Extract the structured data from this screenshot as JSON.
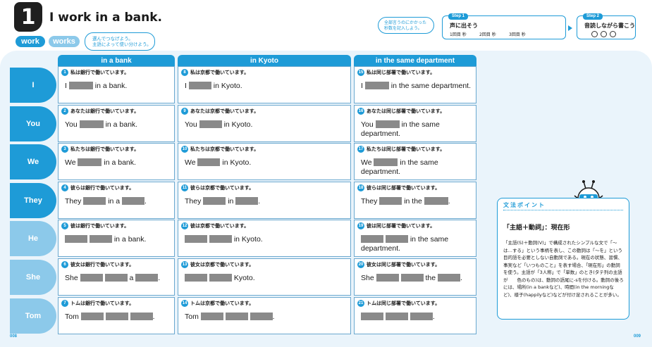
{
  "header": {
    "unit_number": "1",
    "title": "I work in a bank.",
    "pill_work": "work",
    "pill_works": "works",
    "instruction_line1": "選んでつなげよう。",
    "instruction_line2": "主語によって使い分けよう。"
  },
  "steps": {
    "hint_line1": "全部言うのにかかった",
    "hint_line2": "秒数を記入しよう。",
    "step1_tag": "Step 1",
    "step1_text": "声に出そう",
    "step1_r1": "1回目",
    "step1_r2": "2回目",
    "step1_r3": "3回目",
    "step1_unit": "秒",
    "step2_tag": "Step 2",
    "step2_text": "音読しながら書こう"
  },
  "columns": [
    "in a bank",
    "in Kyoto",
    "in the same department"
  ],
  "rows": [
    {
      "subject": "I",
      "style": "dark",
      "cells": [
        {
          "n": "1",
          "jp": "私は銀行で働いています。",
          "pre": "I",
          "b1": 34,
          "mid": "in a bank.",
          "b2": 0,
          "post": ""
        },
        {
          "n": "8",
          "jp": "私は京都で働いています。",
          "pre": "I",
          "b1": 32,
          "mid": "in Kyoto.",
          "b2": 0,
          "post": ""
        },
        {
          "n": "15",
          "jp": "私は同じ部署で働いています。",
          "pre": "I",
          "b1": 34,
          "mid": "in the same department.",
          "b2": 0,
          "post": ""
        }
      ]
    },
    {
      "subject": "You",
      "style": "dark",
      "cells": [
        {
          "n": "2",
          "jp": "あなたは銀行で働いています。",
          "pre": "You",
          "b1": 34,
          "mid": "in a bank.",
          "b2": 0,
          "post": ""
        },
        {
          "n": "9",
          "jp": "あなたは京都で働いています。",
          "pre": "You",
          "b1": 32,
          "mid": "in Kyoto.",
          "b2": 0,
          "post": ""
        },
        {
          "n": "16",
          "jp": "あなたは同じ部署で働いています。",
          "pre": "You",
          "b1": 34,
          "mid": "in the same department.",
          "b2": 0,
          "post": ""
        }
      ]
    },
    {
      "subject": "We",
      "style": "dark",
      "cells": [
        {
          "n": "3",
          "jp": "私たちは銀行で働いています。",
          "pre": "We",
          "b1": 34,
          "mid": "in a bank.",
          "b2": 0,
          "post": ""
        },
        {
          "n": "10",
          "jp": "私たちは京都で働いています。",
          "pre": "We",
          "b1": 32,
          "mid": "in Kyoto.",
          "b2": 0,
          "post": ""
        },
        {
          "n": "17",
          "jp": "私たちは同じ部署で働いています。",
          "pre": "We",
          "b1": 34,
          "mid": "in the same department.",
          "b2": 0,
          "post": ""
        }
      ]
    },
    {
      "subject": "They",
      "style": "dark",
      "cells": [
        {
          "n": "4",
          "jp": "彼らは銀行で働いています。",
          "pre": "They",
          "b1": 32,
          "mid": "in a",
          "b2": 32,
          "post": "."
        },
        {
          "n": "11",
          "jp": "彼らは京都で働いています。",
          "pre": "They",
          "b1": 32,
          "mid": "in",
          "b2": 32,
          "post": "."
        },
        {
          "n": "18",
          "jp": "彼らは同じ部署で働いています。",
          "pre": "They",
          "b1": 32,
          "mid": "in the",
          "b2": 34,
          "post": "."
        }
      ]
    },
    {
      "subject": "He",
      "style": "light",
      "cells": [
        {
          "n": "5",
          "jp": "彼は銀行で働いています。",
          "pre": "",
          "b1": 32,
          "mid": "in a bank.",
          "b2": 32,
          "post": "",
          "b2first": true
        },
        {
          "n": "12",
          "jp": "彼は京都で働いています。",
          "pre": "",
          "b1": 32,
          "mid": "in Kyoto.",
          "b2": 32,
          "post": "",
          "b2first": true
        },
        {
          "n": "19",
          "jp": "彼は同じ部署で働いています。",
          "pre": "",
          "b1": 32,
          "mid": "in the same department.",
          "b2": 32,
          "post": "",
          "b2first": true
        }
      ]
    },
    {
      "subject": "She",
      "style": "light",
      "cells": [
        {
          "n": "6",
          "jp": "彼女は銀行で働いています。",
          "pre": "She",
          "b1": 32,
          "mid": "a",
          "b2": 32,
          "post": ".",
          "extra": 32
        },
        {
          "n": "13",
          "jp": "彼女は京都で働いています。",
          "pre": "",
          "b1": 32,
          "mid": "Kyoto.",
          "b2": 32,
          "post": "",
          "extra": 32,
          "lead": true
        },
        {
          "n": "20",
          "jp": "彼女は同じ部署で働いています。",
          "pre": "She",
          "b1": 32,
          "mid": "the",
          "b2": 32,
          "post": ".",
          "extra": 32
        }
      ]
    },
    {
      "subject": "Tom",
      "style": "light",
      "cells": [
        {
          "n": "7",
          "jp": "トムは銀行で働いています。",
          "pre": "Tom",
          "b1": 32,
          "mid": "",
          "b2": 32,
          "post": ".",
          "extra": 32
        },
        {
          "n": "14",
          "jp": "トムは京都で働いています。",
          "pre": "Tom",
          "b1": 32,
          "mid": "",
          "b2": 32,
          "post": ".",
          "extra": 32
        },
        {
          "n": "21",
          "jp": "トムは同じ部署で働いています。",
          "pre": "",
          "b1": 32,
          "mid": "",
          "b2": 32,
          "post": ".",
          "extra": 32,
          "lead": true
        }
      ]
    }
  ],
  "grammar": {
    "heading": "文法ポイント",
    "title": "「主語＋動詞」：現在形",
    "body": "「主語(S)＋動詞(V)」で構成されたシンプルな文で「〜は…する」という事柄を表し、この動詞は「〜を」という目的語を必要としない自動詞である。現在の状態、習慣、事実など「いつものこと」を表す場合、「現在形」の動詞を使う。主語が「3人称」で「単数」のとき(タテ列の主語が　　色のもの)は、動詞の語尾に-sを付ける。動詞の後ろには、場所(in a bankなど)、時間(in the morningなど)、様子(happilyなど)などが付け足されることが多い。"
  },
  "pages": {
    "left": "008",
    "right": "009"
  },
  "colors": {
    "accent": "#1e9bd7",
    "accent_light": "#8cc9ea",
    "blank": "#8a8a8a"
  }
}
